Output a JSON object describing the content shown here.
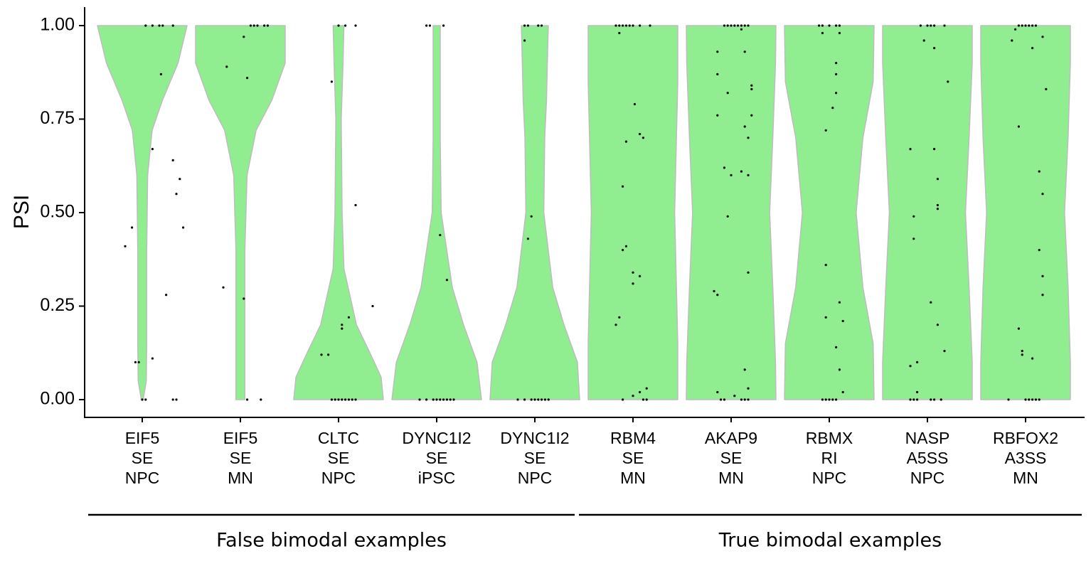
{
  "chart_data": {
    "type": "violin",
    "ylabel": "PSI",
    "xlabel": "",
    "ylim": [
      0,
      1
    ],
    "yticks": [
      "0.00",
      "0.25",
      "0.50",
      "0.75",
      "1.00"
    ],
    "fill_color": "#90ee90",
    "outline_color": "#bdbdbd",
    "point_color": "#000000",
    "groups": [
      {
        "label": "False bimodal examples",
        "from": 0,
        "to": 4
      },
      {
        "label": "True bimodal examples",
        "from": 5,
        "to": 9
      }
    ],
    "categories": [
      {
        "lines": [
          "EIF5",
          "SE",
          "NPC"
        ],
        "profile": [
          [
            0,
            0.02
          ],
          [
            0.05,
            0.09
          ],
          [
            0.15,
            0.1
          ],
          [
            0.4,
            0.1
          ],
          [
            0.6,
            0.12
          ],
          [
            0.72,
            0.22
          ],
          [
            0.8,
            0.45
          ],
          [
            0.9,
            0.8
          ],
          [
            1,
            1
          ]
        ],
        "points": [
          [
            0.1,
            1
          ],
          [
            0.3,
            1
          ],
          [
            0.5,
            1
          ],
          [
            0.6,
            1
          ],
          [
            0.9,
            1
          ],
          [
            0.55,
            0.87
          ],
          [
            0.3,
            0.67
          ],
          [
            0.9,
            0.64
          ],
          [
            1.1,
            0.59
          ],
          [
            1,
            0.55
          ],
          [
            1.2,
            0.46
          ],
          [
            -0.3,
            0.46
          ],
          [
            -0.5,
            0.41
          ],
          [
            0.7,
            0.28
          ],
          [
            0.3,
            0.11
          ],
          [
            -0.1,
            0.1
          ],
          [
            -0.2,
            0.1
          ],
          [
            0,
            0
          ],
          [
            0.1,
            0
          ],
          [
            0.9,
            0
          ],
          [
            1,
            0
          ]
        ]
      },
      {
        "lines": [
          "EIF5",
          "SE",
          "MN"
        ],
        "profile": [
          [
            0,
            0.1
          ],
          [
            0.1,
            0.1
          ],
          [
            0.4,
            0.1
          ],
          [
            0.6,
            0.15
          ],
          [
            0.72,
            0.35
          ],
          [
            0.8,
            0.7
          ],
          [
            0.9,
            1
          ],
          [
            1,
            1
          ]
        ],
        "points": [
          [
            0.3,
            1
          ],
          [
            0.4,
            1
          ],
          [
            0.5,
            1
          ],
          [
            0.7,
            1
          ],
          [
            0.8,
            1
          ],
          [
            0.1,
            0.97
          ],
          [
            -0.4,
            0.89
          ],
          [
            0.2,
            0.86
          ],
          [
            -0.5,
            0.3
          ],
          [
            0.1,
            0.27
          ],
          [
            0.2,
            0
          ],
          [
            0.6,
            0
          ]
        ]
      },
      {
        "lines": [
          "CLTC",
          "SE",
          "NPC"
        ],
        "profile": [
          [
            0,
            1
          ],
          [
            0.06,
            0.95
          ],
          [
            0.12,
            0.72
          ],
          [
            0.2,
            0.4
          ],
          [
            0.35,
            0.12
          ],
          [
            0.5,
            0.08
          ],
          [
            0.75,
            0.06
          ],
          [
            0.9,
            0.1
          ],
          [
            1,
            0.12
          ]
        ],
        "points": [
          [
            0,
            1
          ],
          [
            0.2,
            1
          ],
          [
            0.5,
            1
          ],
          [
            -0.2,
            0.85
          ],
          [
            0.5,
            0.52
          ],
          [
            1,
            0.25
          ],
          [
            0.3,
            0.22
          ],
          [
            0.1,
            0.2
          ],
          [
            0.1,
            0.19
          ],
          [
            -0.3,
            0.12
          ],
          [
            -0.5,
            0.12
          ],
          [
            -0.2,
            0
          ],
          [
            -0.1,
            0
          ],
          [
            0,
            0
          ],
          [
            0.1,
            0
          ],
          [
            0.2,
            0
          ],
          [
            0.3,
            0
          ],
          [
            0.4,
            0
          ],
          [
            0.5,
            0
          ]
        ]
      },
      {
        "lines": [
          "DYNC1I2",
          "SE",
          "iPSC"
        ],
        "profile": [
          [
            0,
            1
          ],
          [
            0.1,
            0.9
          ],
          [
            0.2,
            0.6
          ],
          [
            0.3,
            0.35
          ],
          [
            0.5,
            0.1
          ],
          [
            0.7,
            0.08
          ],
          [
            0.85,
            0.08
          ],
          [
            1,
            0.08
          ]
        ],
        "points": [
          [
            -0.3,
            1
          ],
          [
            -0.2,
            1
          ],
          [
            0.2,
            1
          ],
          [
            0.1,
            0.44
          ],
          [
            0.3,
            0.32
          ],
          [
            -0.5,
            0
          ],
          [
            -0.3,
            0
          ],
          [
            -0.1,
            0
          ],
          [
            0,
            0
          ],
          [
            0.1,
            0
          ],
          [
            0.2,
            0
          ],
          [
            0.3,
            0
          ],
          [
            0.4,
            0
          ],
          [
            0.5,
            0
          ]
        ]
      },
      {
        "lines": [
          "DYNC1I2",
          "SE",
          "NPC"
        ],
        "profile": [
          [
            0,
            1
          ],
          [
            0.1,
            0.95
          ],
          [
            0.2,
            0.65
          ],
          [
            0.3,
            0.4
          ],
          [
            0.5,
            0.2
          ],
          [
            0.7,
            0.22
          ],
          [
            0.8,
            0.26
          ],
          [
            0.9,
            0.28
          ],
          [
            1,
            0.3
          ]
        ],
        "points": [
          [
            -0.3,
            1
          ],
          [
            -0.2,
            1
          ],
          [
            0.1,
            1
          ],
          [
            0.2,
            1
          ],
          [
            -0.3,
            0.96
          ],
          [
            -0.1,
            0.49
          ],
          [
            -0.2,
            0.43
          ],
          [
            -0.5,
            0
          ],
          [
            -0.3,
            0
          ],
          [
            -0.1,
            0
          ],
          [
            0,
            0
          ],
          [
            0.1,
            0
          ],
          [
            0.2,
            0
          ],
          [
            0.3,
            0
          ],
          [
            0.4,
            0
          ]
        ]
      },
      {
        "lines": [
          "RBM4",
          "SE",
          "MN"
        ],
        "profile": [
          [
            0,
            1
          ],
          [
            0.15,
            1
          ],
          [
            0.3,
            0.97
          ],
          [
            0.5,
            0.93
          ],
          [
            0.7,
            0.97
          ],
          [
            0.85,
            1
          ],
          [
            1,
            1
          ]
        ],
        "points": [
          [
            -0.5,
            1
          ],
          [
            -0.4,
            1
          ],
          [
            -0.3,
            1
          ],
          [
            -0.2,
            1
          ],
          [
            -0.1,
            1
          ],
          [
            0,
            1
          ],
          [
            0.2,
            1
          ],
          [
            0.5,
            1
          ],
          [
            -0.4,
            0.98
          ],
          [
            0.05,
            0.79
          ],
          [
            0.2,
            0.71
          ],
          [
            0.3,
            0.7
          ],
          [
            -0.2,
            0.69
          ],
          [
            -0.3,
            0.57
          ],
          [
            -0.3,
            0.4
          ],
          [
            -0.2,
            0.41
          ],
          [
            0,
            0.34
          ],
          [
            0.2,
            0.33
          ],
          [
            0,
            0.31
          ],
          [
            -0.4,
            0.22
          ],
          [
            -0.5,
            0.2
          ],
          [
            0.4,
            0.03
          ],
          [
            0.2,
            0.02
          ],
          [
            0,
            0.01
          ],
          [
            -0.3,
            0
          ],
          [
            0.3,
            0
          ],
          [
            0.4,
            0
          ]
        ]
      },
      {
        "lines": [
          "AKAP9",
          "SE",
          "MN"
        ],
        "profile": [
          [
            0,
            1
          ],
          [
            0.1,
            0.99
          ],
          [
            0.3,
            0.93
          ],
          [
            0.5,
            0.86
          ],
          [
            0.7,
            0.93
          ],
          [
            0.9,
            0.99
          ],
          [
            1,
            1
          ]
        ],
        "points": [
          [
            -0.2,
            1
          ],
          [
            -0.1,
            1
          ],
          [
            0,
            1
          ],
          [
            0.1,
            1
          ],
          [
            0.2,
            1
          ],
          [
            0.3,
            1
          ],
          [
            0.4,
            1
          ],
          [
            0.5,
            1
          ],
          [
            0.3,
            0.99
          ],
          [
            -0.4,
            0.93
          ],
          [
            0.4,
            0.93
          ],
          [
            -0.4,
            0.87
          ],
          [
            0.6,
            0.84
          ],
          [
            0.6,
            0.83
          ],
          [
            -0.1,
            0.82
          ],
          [
            0.4,
            0.73
          ],
          [
            0.5,
            0.7
          ],
          [
            0.6,
            0.76
          ],
          [
            -0.4,
            0.76
          ],
          [
            -0.2,
            0.62
          ],
          [
            0,
            0.6
          ],
          [
            0.3,
            0.61
          ],
          [
            0.5,
            0.6
          ],
          [
            -0.1,
            0.49
          ],
          [
            0.5,
            0.34
          ],
          [
            -0.5,
            0.29
          ],
          [
            -0.4,
            0.28
          ],
          [
            0.4,
            0.08
          ],
          [
            0.5,
            0.03
          ],
          [
            -0.4,
            0.02
          ],
          [
            0.1,
            0.01
          ],
          [
            -0.3,
            0
          ],
          [
            -0.2,
            0
          ],
          [
            0.3,
            0
          ],
          [
            0.4,
            0
          ],
          [
            0.5,
            0
          ]
        ]
      },
      {
        "lines": [
          "RBMX",
          "RI",
          "NPC"
        ],
        "profile": [
          [
            0,
            1
          ],
          [
            0.15,
            0.98
          ],
          [
            0.3,
            0.75
          ],
          [
            0.5,
            0.6
          ],
          [
            0.7,
            0.75
          ],
          [
            0.85,
            0.98
          ],
          [
            1,
            1
          ]
        ],
        "points": [
          [
            -0.3,
            1
          ],
          [
            -0.2,
            1
          ],
          [
            0,
            1
          ],
          [
            0.2,
            1
          ],
          [
            0.3,
            1
          ],
          [
            -0.2,
            0.98
          ],
          [
            0.3,
            0.98
          ],
          [
            0.2,
            0.9
          ],
          [
            0.2,
            0.87
          ],
          [
            0.2,
            0.82
          ],
          [
            0.1,
            0.78
          ],
          [
            -0.1,
            0.72
          ],
          [
            -0.1,
            0.36
          ],
          [
            0.3,
            0.26
          ],
          [
            -0.1,
            0.22
          ],
          [
            0.4,
            0.21
          ],
          [
            0.2,
            0.14
          ],
          [
            0.3,
            0.08
          ],
          [
            0.4,
            0.02
          ],
          [
            -0.2,
            0
          ],
          [
            -0.1,
            0
          ],
          [
            0,
            0
          ],
          [
            0.1,
            0
          ],
          [
            0.2,
            0
          ]
        ]
      },
      {
        "lines": [
          "NASP",
          "A5SS",
          "NPC"
        ],
        "profile": [
          [
            0,
            1
          ],
          [
            0.1,
            1
          ],
          [
            0.3,
            0.93
          ],
          [
            0.5,
            0.85
          ],
          [
            0.7,
            0.93
          ],
          [
            0.9,
            1
          ],
          [
            1,
            1
          ]
        ],
        "points": [
          [
            -0.2,
            1
          ],
          [
            0,
            1
          ],
          [
            0.1,
            1
          ],
          [
            0.2,
            1
          ],
          [
            0.5,
            1
          ],
          [
            -0.1,
            0.96
          ],
          [
            0.2,
            0.94
          ],
          [
            0.6,
            0.85
          ],
          [
            -0.5,
            0.67
          ],
          [
            0.2,
            0.67
          ],
          [
            0.3,
            0.59
          ],
          [
            0.3,
            0.52
          ],
          [
            0.3,
            0.51
          ],
          [
            -0.4,
            0.49
          ],
          [
            -0.4,
            0.43
          ],
          [
            0.1,
            0.26
          ],
          [
            0.3,
            0.2
          ],
          [
            0.5,
            0.13
          ],
          [
            -0.3,
            0.1
          ],
          [
            -0.5,
            0.09
          ],
          [
            -0.3,
            0.02
          ],
          [
            -0.5,
            0
          ],
          [
            -0.4,
            0
          ],
          [
            -0.3,
            0
          ],
          [
            0.1,
            0
          ],
          [
            0.2,
            0
          ],
          [
            0.4,
            0
          ]
        ]
      },
      {
        "lines": [
          "RBFOX2",
          "A3SS",
          "MN"
        ],
        "profile": [
          [
            0,
            1
          ],
          [
            0.1,
            1
          ],
          [
            0.3,
            0.95
          ],
          [
            0.5,
            0.87
          ],
          [
            0.7,
            0.95
          ],
          [
            0.9,
            1
          ],
          [
            1,
            1
          ]
        ],
        "points": [
          [
            -0.2,
            1
          ],
          [
            -0.1,
            1
          ],
          [
            0,
            1
          ],
          [
            0.1,
            1
          ],
          [
            0.2,
            1
          ],
          [
            0.3,
            1
          ],
          [
            -0.3,
            0.99
          ],
          [
            0.5,
            0.97
          ],
          [
            -0.4,
            0.96
          ],
          [
            0.2,
            0.94
          ],
          [
            0.6,
            0.83
          ],
          [
            -0.2,
            0.73
          ],
          [
            0.4,
            0.61
          ],
          [
            0.5,
            0.55
          ],
          [
            0.4,
            0.4
          ],
          [
            0.5,
            0.33
          ],
          [
            0.5,
            0.28
          ],
          [
            -0.2,
            0.19
          ],
          [
            -0.1,
            0.13
          ],
          [
            -0.1,
            0.12
          ],
          [
            0.2,
            0.11
          ],
          [
            -0.5,
            0
          ],
          [
            0,
            0
          ],
          [
            0.1,
            0
          ],
          [
            0.2,
            0
          ],
          [
            0.3,
            0
          ],
          [
            0.4,
            0
          ]
        ]
      }
    ]
  }
}
